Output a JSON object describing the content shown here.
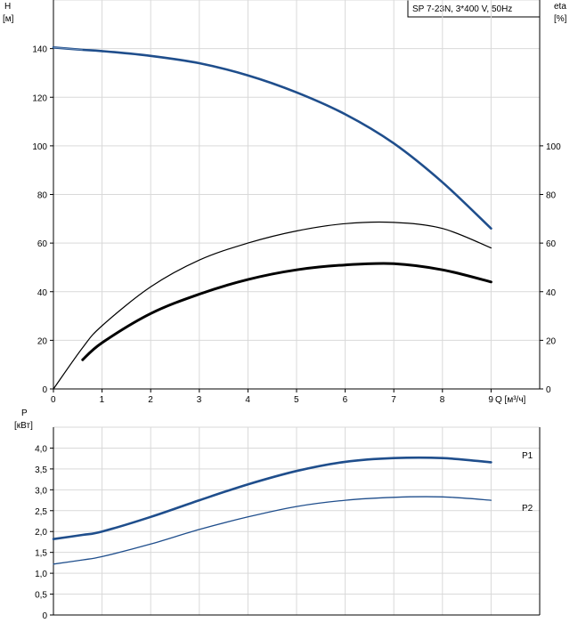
{
  "chart_data": [
    {
      "type": "line",
      "title": "SP 7-23N, 3*400 V, 50Hz",
      "xlabel": "Q [м³/ч]",
      "ylabel_left": "H",
      "ylabel_left_unit": "[м]",
      "ylabel_right": "eta",
      "ylabel_right_unit": "[%]",
      "xlim": [
        0,
        10
      ],
      "ylim": [
        0,
        160
      ],
      "ylim_right": [
        0,
        160
      ],
      "x_ticks": [
        "0",
        "1",
        "2",
        "3",
        "4",
        "5",
        "6",
        "7",
        "8",
        "9"
      ],
      "y_ticks_left": [
        "0",
        "20",
        "40",
        "60",
        "80",
        "100",
        "120",
        "140"
      ],
      "y_ticks_right": [
        "0",
        "20",
        "40",
        "60",
        "80",
        "100"
      ],
      "grid": true,
      "series": [
        {
          "role": "H",
          "axis": "left",
          "color": "#1f4e8c",
          "x": [
            0,
            0.6,
            1,
            2,
            3,
            4,
            5,
            6,
            7,
            8,
            9
          ],
          "y": [
            140.5,
            139.5,
            139,
            137,
            134,
            129,
            122,
            113,
            101,
            85,
            66
          ]
        },
        {
          "role": "eta thin",
          "axis": "right",
          "color": "#000000",
          "x": [
            0,
            0.6,
            1,
            2,
            3,
            4,
            5,
            6,
            7,
            8,
            9
          ],
          "y": [
            0,
            17,
            26,
            42,
            53,
            60,
            65,
            68,
            68.5,
            66,
            58
          ]
        },
        {
          "role": "eta thick",
          "axis": "right",
          "color": "#000000",
          "x": [
            0.6,
            1,
            2,
            3,
            4,
            5,
            6,
            7,
            8,
            9
          ],
          "y": [
            12,
            19,
            31,
            39,
            45,
            49,
            51,
            51.5,
            49,
            44
          ]
        }
      ]
    },
    {
      "type": "line",
      "ylabel": "P",
      "ylabel_unit": "[кВт]",
      "xlim": [
        0,
        10
      ],
      "ylim": [
        0,
        4.5
      ],
      "y_ticks": [
        "0",
        "0,5",
        "1,0",
        "1,5",
        "2,0",
        "2,5",
        "3,0",
        "3,5",
        "4,0"
      ],
      "grid": true,
      "series": [
        {
          "name": "P1",
          "color": "#1f4e8c",
          "x": [
            0,
            0.6,
            1,
            2,
            3,
            4,
            5,
            6,
            7,
            8,
            9
          ],
          "y": [
            1.82,
            1.92,
            2.0,
            2.35,
            2.75,
            3.13,
            3.45,
            3.67,
            3.76,
            3.76,
            3.66
          ]
        },
        {
          "name": "P2",
          "color": "#1f4e8c",
          "x": [
            0,
            0.6,
            1,
            2,
            3,
            4,
            5,
            6,
            7,
            8,
            9
          ],
          "y": [
            1.22,
            1.32,
            1.4,
            1.7,
            2.05,
            2.35,
            2.6,
            2.75,
            2.82,
            2.83,
            2.75
          ]
        }
      ]
    }
  ]
}
